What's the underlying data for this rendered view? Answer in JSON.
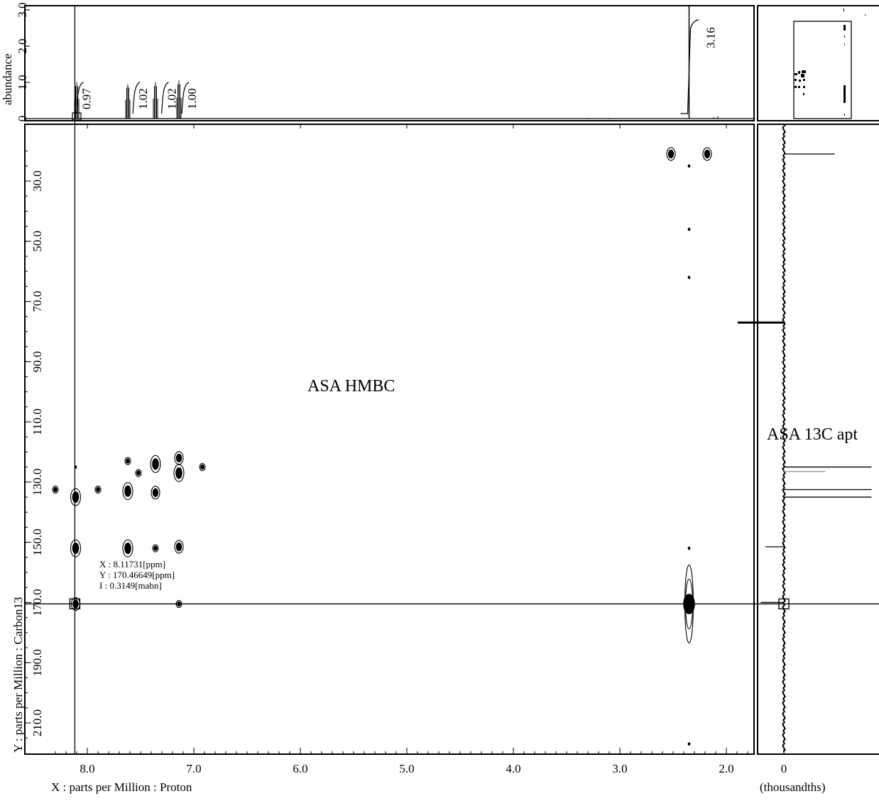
{
  "chart_data": {
    "type": "heatmap",
    "experiment_label": "ASA HMBC",
    "side_spectrum_label": "ASA 13C apt",
    "xlabel": "X : parts per Million : Proton",
    "ylabel": "Y : parts per Million : Carbon13",
    "top_ylabel": "abundance",
    "side_xlabel": "(thousandths)",
    "x_ticks": [
      "8.0",
      "7.0",
      "6.0",
      "5.0",
      "4.0",
      "3.0",
      "2.0"
    ],
    "y_ticks": [
      "30.0",
      "50.0",
      "70.0",
      "90.0",
      "110.0",
      "130.0",
      "150.0",
      "170.0",
      "190.0",
      "210.0"
    ],
    "top_ticks": [
      "0",
      "1.0",
      "2.0",
      "3.0"
    ],
    "side_ticks": [
      "0"
    ],
    "xlim": [
      8.35,
      1.7
    ],
    "ylim": [
      15,
      220
    ],
    "cursor": {
      "x_text": "X : 8.11731[ppm]",
      "y_text": "Y : 170.46649[ppm]",
      "i_text": "I : 0.3149[mabn]",
      "x": 8.11731,
      "y": 170.46649
    },
    "proton_peaks": [
      {
        "ppm": 8.1,
        "height": 1.0
      },
      {
        "ppm": 7.62,
        "height": 0.95
      },
      {
        "ppm": 7.36,
        "height": 1.0
      },
      {
        "ppm": 7.14,
        "height": 1.05
      },
      {
        "ppm": 2.35,
        "height": 3.1
      }
    ],
    "integrals": [
      {
        "ppm": 8.05,
        "label": "0.97"
      },
      {
        "ppm": 7.52,
        "label": "1.02"
      },
      {
        "ppm": 7.25,
        "label": "1.02"
      },
      {
        "ppm": 7.06,
        "label": "1.00"
      },
      {
        "ppm": 2.2,
        "label": "3.16"
      }
    ],
    "correlations": [
      {
        "x": 8.11,
        "y": 135.0,
        "size": 3
      },
      {
        "x": 8.11,
        "y": 152.0,
        "size": 3
      },
      {
        "x": 8.11,
        "y": 170.5,
        "size": 2
      },
      {
        "x": 8.11,
        "y": 125.0,
        "size": 0
      },
      {
        "x": 8.3,
        "y": 132.5,
        "size": 1
      },
      {
        "x": 7.9,
        "y": 132.5,
        "size": 1
      },
      {
        "x": 7.62,
        "y": 123.0,
        "size": 1
      },
      {
        "x": 7.62,
        "y": 133.0,
        "size": 3
      },
      {
        "x": 7.62,
        "y": 152.0,
        "size": 3
      },
      {
        "x": 7.52,
        "y": 127.0,
        "size": 1
      },
      {
        "x": 7.36,
        "y": 124.0,
        "size": 3
      },
      {
        "x": 7.36,
        "y": 133.5,
        "size": 2
      },
      {
        "x": 7.36,
        "y": 152.0,
        "size": 1
      },
      {
        "x": 7.14,
        "y": 122.0,
        "size": 2
      },
      {
        "x": 7.14,
        "y": 127.0,
        "size": 3
      },
      {
        "x": 7.14,
        "y": 151.5,
        "size": 2
      },
      {
        "x": 7.14,
        "y": 170.5,
        "size": 1
      },
      {
        "x": 6.92,
        "y": 125.0,
        "size": 1
      },
      {
        "x": 2.52,
        "y": 21.0,
        "size": 2
      },
      {
        "x": 2.18,
        "y": 21.0,
        "size": 2
      },
      {
        "x": 2.35,
        "y": 170.5,
        "size": 4
      },
      {
        "x": 2.35,
        "y": 152.0,
        "size": 0
      },
      {
        "x": 2.35,
        "y": 62.0,
        "size": 0
      },
      {
        "x": 2.35,
        "y": 217.0,
        "size": 0
      },
      {
        "x": 2.35,
        "y": 25.0,
        "size": 0
      },
      {
        "x": 2.35,
        "y": 46.0,
        "size": 0
      }
    ],
    "carbon_peaks": [
      {
        "ppm": 21.0,
        "intensity": 0.55
      },
      {
        "ppm": 77.0,
        "intensity": -0.5
      },
      {
        "ppm": 125.0,
        "intensity": 0.95
      },
      {
        "ppm": 126.5,
        "intensity": 0.45
      },
      {
        "ppm": 132.5,
        "intensity": 0.95
      },
      {
        "ppm": 135.0,
        "intensity": 0.95
      },
      {
        "ppm": 151.5,
        "intensity": -0.2
      },
      {
        "ppm": 170.0,
        "intensity": -0.25
      }
    ]
  }
}
